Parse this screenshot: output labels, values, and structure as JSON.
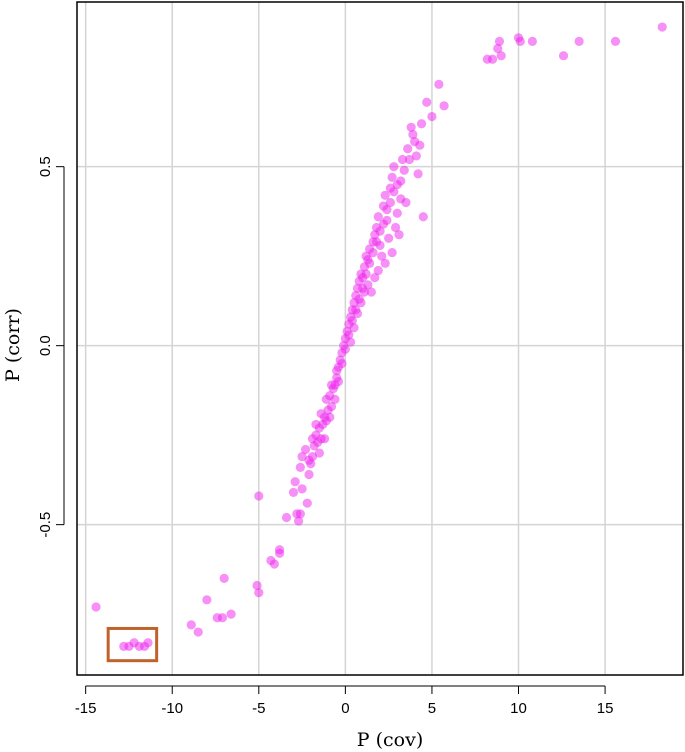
{
  "chart_data": {
    "type": "scatter",
    "xlabel": "P (cov)",
    "ylabel": "P (corr)",
    "xlim": [
      -15.5,
      19.5
    ],
    "ylim": [
      -0.92,
      0.96
    ],
    "x_ticks": [
      -15,
      -10,
      -5,
      0,
      5,
      10,
      15
    ],
    "x_tick_labels": [
      "-15",
      "-10",
      "-5",
      "0",
      "5",
      "10",
      "15"
    ],
    "y_ticks": [
      -0.5,
      0.0,
      0.5
    ],
    "y_tick_labels": [
      "-0.5",
      "0.0",
      "0.5"
    ],
    "grid": true,
    "colors": {
      "points": "#ee22ee",
      "highlight_box": "#c0622a",
      "grid": "#d4d4d4"
    },
    "highlight_region": {
      "x": [
        -13.7,
        -10.9
      ],
      "y": [
        -0.88,
        -0.79
      ]
    },
    "series": [
      {
        "points": [
          [
            -14.4,
            -0.73
          ],
          [
            -12.8,
            -0.84
          ],
          [
            -12.5,
            -0.84
          ],
          [
            -12.2,
            -0.83
          ],
          [
            -11.9,
            -0.84
          ],
          [
            -11.6,
            -0.84
          ],
          [
            -11.4,
            -0.83
          ],
          [
            -8.9,
            -0.78
          ],
          [
            -8.5,
            -0.8
          ],
          [
            -8.0,
            -0.71
          ],
          [
            -7.4,
            -0.76
          ],
          [
            -7.1,
            -0.76
          ],
          [
            -7.0,
            -0.65
          ],
          [
            -6.6,
            -0.75
          ],
          [
            -5.0,
            -0.42
          ],
          [
            -5.1,
            -0.67
          ],
          [
            -5.0,
            -0.69
          ],
          [
            -4.3,
            -0.6
          ],
          [
            -4.1,
            -0.61
          ],
          [
            -3.8,
            -0.58
          ],
          [
            -3.8,
            -0.57
          ],
          [
            -3.4,
            -0.48
          ],
          [
            -3.0,
            -0.41
          ],
          [
            -2.9,
            -0.38
          ],
          [
            -2.8,
            -0.47
          ],
          [
            -2.7,
            -0.49
          ],
          [
            -2.6,
            -0.47
          ],
          [
            -2.5,
            -0.4
          ],
          [
            -2.6,
            -0.34
          ],
          [
            -2.5,
            -0.31
          ],
          [
            -2.3,
            -0.29
          ],
          [
            -2.2,
            -0.44
          ],
          [
            -2.1,
            -0.36
          ],
          [
            -2.0,
            -0.33
          ],
          [
            -1.9,
            -0.31
          ],
          [
            -1.8,
            -0.28
          ],
          [
            -1.7,
            -0.25
          ],
          [
            -1.6,
            -0.27
          ],
          [
            -1.5,
            -0.23
          ],
          [
            -1.4,
            -0.26
          ],
          [
            -1.3,
            -0.22
          ],
          [
            -1.2,
            -0.2
          ],
          [
            -1.1,
            -0.21
          ],
          [
            -1.0,
            -0.18
          ],
          [
            -0.9,
            -0.14
          ],
          [
            -0.8,
            -0.17
          ],
          [
            -0.7,
            -0.12
          ],
          [
            -0.6,
            -0.11
          ],
          [
            -0.5,
            -0.09
          ],
          [
            -0.4,
            -0.06
          ],
          [
            -0.3,
            -0.04
          ],
          [
            -0.2,
            -0.02
          ],
          [
            -0.1,
            0.0
          ],
          [
            0.0,
            0.02
          ],
          [
            0.1,
            0.04
          ],
          [
            0.2,
            0.06
          ],
          [
            0.3,
            0.08
          ],
          [
            0.4,
            0.1
          ],
          [
            0.5,
            0.12
          ],
          [
            0.6,
            0.14
          ],
          [
            0.7,
            0.16
          ],
          [
            0.8,
            0.18
          ],
          [
            0.9,
            0.2
          ],
          [
            1.0,
            0.19
          ],
          [
            1.1,
            0.22
          ],
          [
            1.2,
            0.25
          ],
          [
            1.3,
            0.24
          ],
          [
            1.4,
            0.27
          ],
          [
            1.5,
            0.15
          ],
          [
            1.6,
            0.29
          ],
          [
            1.7,
            0.31
          ],
          [
            1.8,
            0.33
          ],
          [
            1.9,
            0.36
          ],
          [
            2.0,
            0.28
          ],
          [
            2.1,
            0.25
          ],
          [
            2.2,
            0.39
          ],
          [
            2.3,
            0.42
          ],
          [
            2.4,
            0.35
          ],
          [
            2.5,
            0.3
          ],
          [
            2.6,
            0.44
          ],
          [
            2.7,
            0.47
          ],
          [
            2.8,
            0.5
          ],
          [
            2.9,
            0.33
          ],
          [
            3.0,
            0.37
          ],
          [
            3.2,
            0.46
          ],
          [
            3.3,
            0.52
          ],
          [
            3.5,
            0.4
          ],
          [
            3.6,
            0.55
          ],
          [
            3.8,
            0.61
          ],
          [
            4.0,
            0.57
          ],
          [
            4.2,
            0.48
          ],
          [
            4.4,
            0.62
          ],
          [
            4.5,
            0.36
          ],
          [
            4.7,
            0.68
          ],
          [
            5.0,
            0.64
          ],
          [
            5.4,
            0.73
          ],
          [
            5.7,
            0.67
          ],
          [
            8.2,
            0.8
          ],
          [
            8.5,
            0.8
          ],
          [
            8.8,
            0.83
          ],
          [
            8.9,
            0.85
          ],
          [
            9.0,
            0.81
          ],
          [
            10.0,
            0.86
          ],
          [
            10.1,
            0.85
          ],
          [
            10.8,
            0.85
          ],
          [
            12.6,
            0.81
          ],
          [
            13.5,
            0.85
          ],
          [
            15.6,
            0.85
          ],
          [
            18.3,
            0.89
          ],
          [
            -1.5,
            -0.3
          ],
          [
            -1.2,
            -0.26
          ],
          [
            -0.9,
            -0.2
          ],
          [
            -0.6,
            -0.15
          ],
          [
            -0.4,
            -0.1
          ],
          [
            0.2,
            0.03
          ],
          [
            0.4,
            0.07
          ],
          [
            0.6,
            0.1
          ],
          [
            0.8,
            0.13
          ],
          [
            1.0,
            0.16
          ],
          [
            1.2,
            0.2
          ],
          [
            1.4,
            0.23
          ],
          [
            1.6,
            0.26
          ],
          [
            1.8,
            0.29
          ],
          [
            2.0,
            0.32
          ],
          [
            2.2,
            0.34
          ],
          [
            2.4,
            0.38
          ],
          [
            2.6,
            0.4
          ],
          [
            2.8,
            0.43
          ],
          [
            3.0,
            0.45
          ],
          [
            3.2,
            0.41
          ],
          [
            3.4,
            0.49
          ],
          [
            3.7,
            0.52
          ],
          [
            3.9,
            0.59
          ],
          [
            4.1,
            0.53
          ],
          [
            4.3,
            0.56
          ],
          [
            2.7,
            0.26
          ],
          [
            3.1,
            0.31
          ],
          [
            2.3,
            0.23
          ],
          [
            1.9,
            0.21
          ],
          [
            1.7,
            0.19
          ],
          [
            -0.2,
            -0.05
          ],
          [
            0.0,
            -0.01
          ],
          [
            0.3,
            0.01
          ],
          [
            0.5,
            0.05
          ],
          [
            0.7,
            0.09
          ],
          [
            0.9,
            0.12
          ],
          [
            1.1,
            0.15
          ],
          [
            1.3,
            0.17
          ],
          [
            -2.1,
            -0.32
          ],
          [
            -1.9,
            -0.26
          ],
          [
            -1.7,
            -0.22
          ],
          [
            -1.4,
            -0.19
          ],
          [
            -1.1,
            -0.15
          ],
          [
            -0.8,
            -0.11
          ],
          [
            -0.5,
            -0.07
          ]
        ]
      }
    ]
  }
}
